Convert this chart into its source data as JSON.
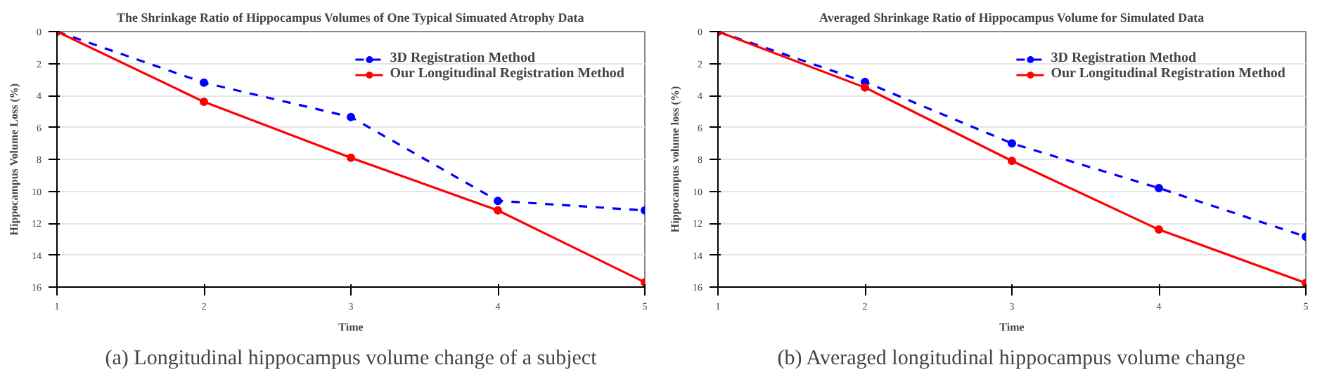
{
  "chart_data": [
    {
      "type": "line",
      "title": "The Shrinkage Ratio of Hippocampus Volumes of One Typical Simuated Atrophy Data",
      "xlabel": "Time",
      "ylabel": "Hippocampus Volume Loss (%)",
      "x": [
        1,
        2,
        3,
        4,
        5
      ],
      "series": [
        {
          "name": "3D Registration Method",
          "color": "#0000ff",
          "line_style": "dashed",
          "values": [
            0,
            3.2,
            5.35,
            10.6,
            11.2
          ]
        },
        {
          "name": "Our Longitudinal Registration Method",
          "color": "#ff0000",
          "line_style": "solid",
          "values": [
            0,
            4.4,
            7.9,
            11.2,
            15.7
          ]
        }
      ],
      "xlim": [
        1,
        5
      ],
      "xticks": [
        1,
        2,
        3,
        4,
        5
      ],
      "ylim": [
        16,
        0
      ],
      "yticks": [
        0,
        2,
        4,
        6,
        8,
        10,
        12,
        14,
        16
      ],
      "grid": "y",
      "legend": "top right",
      "marker": "circle",
      "annotations": [
        "(a) Longitudinal hippocampus volume change of a subject"
      ]
    },
    {
      "type": "line",
      "title": "Averaged Shrinkage Ratio of Hippocampus Volume for Simulated Data",
      "xlabel": "Time",
      "ylabel": "Hippocampus volume loss (%)",
      "x": [
        1,
        2,
        3,
        4,
        5
      ],
      "series": [
        {
          "name": "3D Registration Method",
          "color": "#0000ff",
          "line_style": "dashed",
          "values": [
            0,
            3.15,
            7.0,
            9.8,
            12.85
          ]
        },
        {
          "name": "Our Longitudinal Registration Method",
          "color": "#ff0000",
          "line_style": "solid",
          "values": [
            0,
            3.5,
            8.1,
            12.4,
            15.75
          ]
        }
      ],
      "xlim": [
        1,
        5
      ],
      "xticks": [
        1,
        2,
        3,
        4,
        5
      ],
      "ylim": [
        16,
        0
      ],
      "yticks": [
        0,
        2,
        4,
        6,
        8,
        10,
        12,
        14,
        16
      ],
      "grid": "y",
      "legend": "top right",
      "marker": "circle",
      "annotations": [
        "(b) Averaged longitudinal hippocampus volume change"
      ]
    }
  ]
}
